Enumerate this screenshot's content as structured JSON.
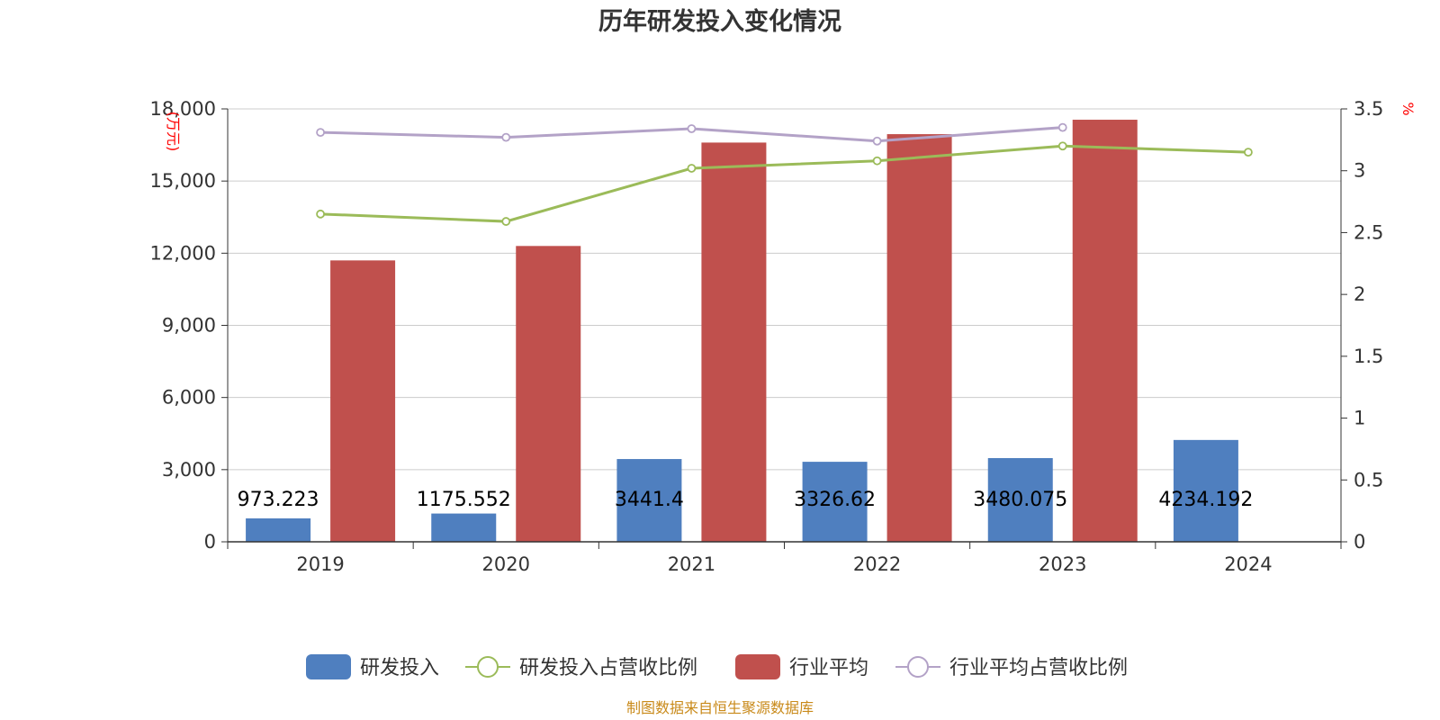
{
  "chart_data": {
    "type": "bar",
    "title": "历年研发投入变化情况",
    "categories": [
      "2019",
      "2020",
      "2021",
      "2022",
      "2023",
      "2024"
    ],
    "y_left": {
      "unit_label": "(万元)",
      "ylim": [
        0,
        18000
      ],
      "ticks": [
        0,
        3000,
        6000,
        9000,
        12000,
        15000,
        18000
      ],
      "tick_labels": [
        "0",
        "3,000",
        "6,000",
        "9,000",
        "12,000",
        "15,000",
        "18,000"
      ]
    },
    "y_right": {
      "unit_label": "%",
      "ylim": [
        0,
        3.5
      ],
      "ticks": [
        0,
        0.5,
        1,
        1.5,
        2,
        2.5,
        3,
        3.5
      ],
      "tick_labels": [
        "0",
        "0.5",
        "1",
        "1.5",
        "2",
        "2.5",
        "3",
        "3.5"
      ]
    },
    "grid": true,
    "legend_position": "bottom",
    "series": [
      {
        "name": "研发投入",
        "type": "bar",
        "axis": "left",
        "color": "#4f7fbf",
        "values": [
          973.223,
          1175.552,
          3441.4,
          3326.62,
          3480.075,
          4234.192
        ],
        "labels": [
          "973.223",
          "1175.552",
          "3441.4",
          "3326.62",
          "3480.075",
          "4234.192"
        ]
      },
      {
        "name": "研发投入占营收比例",
        "type": "line",
        "axis": "right",
        "color": "#9bbb59",
        "values": [
          2.65,
          2.59,
          3.02,
          3.08,
          3.2,
          3.15
        ]
      },
      {
        "name": "行业平均",
        "type": "bar",
        "axis": "left",
        "color": "#c0504d",
        "values": [
          11700,
          12300,
          16600,
          16950,
          17550,
          null
        ]
      },
      {
        "name": "行业平均占营收比例",
        "type": "line",
        "axis": "right",
        "color": "#b3a2c7",
        "values": [
          3.31,
          3.27,
          3.34,
          3.24,
          3.35,
          null
        ]
      }
    ]
  },
  "footer": {
    "source": "制图数据来自恒生聚源数据库"
  }
}
